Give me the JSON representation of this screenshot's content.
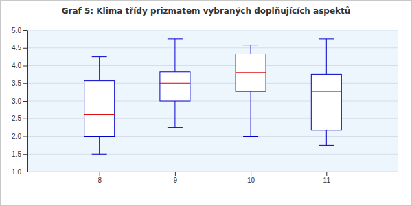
{
  "chart_data": {
    "type": "box",
    "title": "Graf 5: Klima třídy prizmatem vybraných doplňujících aspektů",
    "categories": [
      "8",
      "9",
      "10",
      "11"
    ],
    "min": [
      1.5,
      2.25,
      2.0,
      1.75
    ],
    "q1": [
      2.0,
      3.0,
      3.27,
      2.17
    ],
    "median": [
      2.62,
      3.5,
      3.8,
      3.27
    ],
    "q3": [
      3.57,
      3.82,
      4.33,
      3.75
    ],
    "max": [
      4.25,
      4.75,
      4.58,
      4.75
    ],
    "color": "#0000cc",
    "ylim": [
      1,
      5
    ],
    "yticks": [
      {
        "value": 1,
        "label": "1.0"
      },
      1.5,
      {
        "value": 2,
        "label": "2.0"
      },
      2.5,
      {
        "value": 3,
        "label": "3.0"
      },
      3.5,
      {
        "value": 4,
        "label": "4.0"
      },
      4.5,
      {
        "value": 5,
        "label": "5.0"
      }
    ],
    "grid": true
  }
}
